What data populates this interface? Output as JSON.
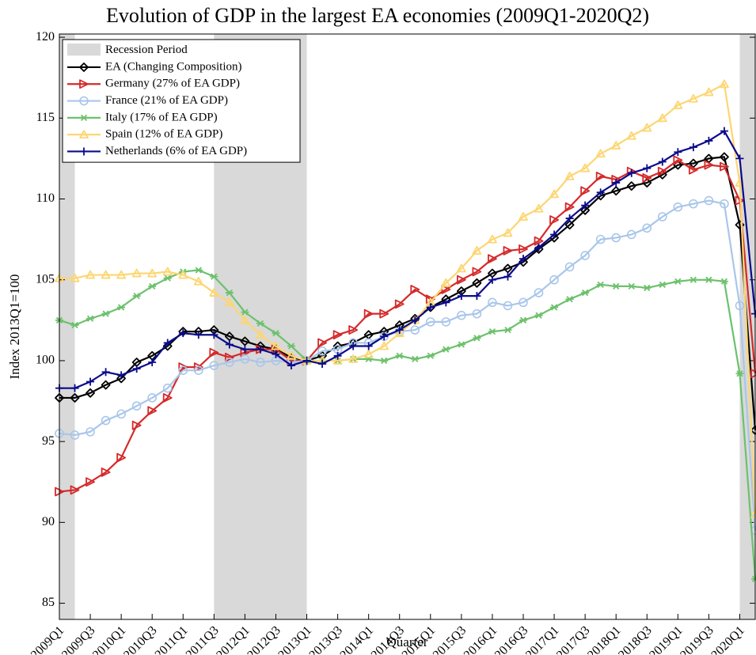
{
  "chart_data": {
    "type": "line",
    "title": "Evolution of GDP in the largest EA economies (2009Q1-2020Q2)",
    "x_label": "Quarter",
    "y_label": "Index 2013Q1=100",
    "categories": [
      "2009Q1",
      null,
      "2009Q3",
      null,
      "2010Q1",
      null,
      "2010Q3",
      null,
      "2011Q1",
      null,
      "2011Q3",
      null,
      "2012Q1",
      null,
      "2012Q3",
      null,
      "2013Q1",
      null,
      "2013Q3",
      null,
      "2014Q1",
      null,
      "2014Q3",
      null,
      "2015Q1",
      null,
      "2015Q3",
      null,
      "2016Q1",
      null,
      "2016Q3",
      null,
      "2017Q1",
      null,
      "2017Q3",
      null,
      "2018Q1",
      null,
      "2018Q3",
      null,
      "2019Q1",
      null,
      "2019Q3",
      null,
      "2020Q1",
      null
    ],
    "ylim": [
      84,
      120.2
    ],
    "yticks": [
      85,
      90,
      95,
      100,
      105,
      110,
      115,
      120
    ],
    "legend": "northwest",
    "recession_label": "Recession Period",
    "recession_color": "#d9d9d9",
    "recessions": [
      [
        0,
        1
      ],
      [
        10,
        16
      ],
      [
        44,
        45
      ]
    ],
    "series": [
      {
        "name": "EA (Changing Composition)",
        "color": "#000000",
        "marker": "diamond",
        "values": [
          97.7,
          97.7,
          98.0,
          98.5,
          98.9,
          99.9,
          100.3,
          100.9,
          101.8,
          101.8,
          101.9,
          101.5,
          101.2,
          100.9,
          100.7,
          100.2,
          100.0,
          100.3,
          100.9,
          101.1,
          101.6,
          101.8,
          102.2,
          102.6,
          103.3,
          103.8,
          104.3,
          104.8,
          105.4,
          105.7,
          106.1,
          106.9,
          107.6,
          108.4,
          109.3,
          110.2,
          110.5,
          110.8,
          111.0,
          111.5,
          112.1,
          112.2,
          112.5,
          112.6,
          108.4,
          95.7
        ]
      },
      {
        "name": "Germany (27% of EA GDP)",
        "color": "#d42a2a",
        "marker": "triangle-right",
        "values": [
          91.9,
          92.0,
          92.5,
          93.1,
          94.0,
          96.0,
          96.9,
          97.7,
          99.6,
          99.6,
          100.5,
          100.2,
          100.5,
          100.7,
          100.7,
          100.0,
          100.0,
          101.1,
          101.6,
          101.9,
          102.9,
          102.9,
          103.5,
          104.4,
          103.8,
          104.4,
          105.0,
          105.5,
          106.3,
          106.8,
          106.9,
          107.4,
          108.7,
          109.5,
          110.5,
          111.4,
          111.2,
          111.7,
          111.3,
          111.7,
          112.4,
          111.8,
          112.1,
          112.0,
          109.9,
          99.2
        ]
      },
      {
        "name": "France (21% of EA GDP)",
        "color": "#a9c6ea",
        "marker": "circle",
        "values": [
          95.5,
          95.4,
          95.6,
          96.3,
          96.7,
          97.2,
          97.7,
          98.3,
          99.4,
          99.4,
          99.7,
          99.9,
          100.1,
          99.9,
          100.0,
          99.9,
          100.0,
          100.6,
          100.7,
          101.1,
          101.1,
          101.5,
          101.8,
          101.9,
          102.4,
          102.4,
          102.8,
          102.9,
          103.6,
          103.4,
          103.6,
          104.2,
          105.0,
          105.8,
          106.5,
          107.5,
          107.6,
          107.8,
          108.2,
          108.9,
          109.5,
          109.7,
          109.9,
          109.7,
          103.4,
          89.5
        ]
      },
      {
        "name": "Italy (17% of EA GDP)",
        "color": "#6cc16c",
        "marker": "asterisk",
        "values": [
          102.5,
          102.2,
          102.6,
          102.9,
          103.3,
          104.0,
          104.6,
          105.1,
          105.5,
          105.6,
          105.2,
          104.2,
          103.0,
          102.3,
          101.7,
          100.9,
          100.0,
          100.0,
          100.0,
          100.1,
          100.1,
          100.0,
          100.3,
          100.1,
          100.3,
          100.7,
          101.0,
          101.4,
          101.8,
          101.9,
          102.5,
          102.8,
          103.3,
          103.8,
          104.2,
          104.7,
          104.6,
          104.6,
          104.5,
          104.7,
          104.9,
          105.0,
          105.0,
          104.9,
          99.2,
          86.5
        ]
      },
      {
        "name": "Spain (12% of EA GDP)",
        "color": "#fdd672",
        "marker": "triangle-up",
        "values": [
          105.1,
          105.1,
          105.3,
          105.3,
          105.3,
          105.4,
          105.4,
          105.5,
          105.3,
          104.9,
          104.2,
          103.6,
          102.5,
          101.6,
          100.9,
          100.3,
          100.0,
          100.0,
          100.0,
          100.1,
          100.4,
          100.9,
          101.7,
          102.5,
          103.6,
          104.8,
          105.7,
          106.8,
          107.5,
          107.9,
          108.9,
          109.4,
          110.3,
          111.4,
          111.9,
          112.8,
          113.3,
          113.9,
          114.4,
          115.0,
          115.8,
          116.2,
          116.6,
          117.1,
          111.0,
          90.5
        ]
      },
      {
        "name": "Netherlands (6% of EA GDP)",
        "color": "#0b0b8c",
        "marker": "plus",
        "values": [
          98.3,
          98.3,
          98.7,
          99.3,
          99.1,
          99.5,
          99.9,
          101.1,
          101.7,
          101.6,
          101.6,
          101.0,
          100.7,
          100.7,
          100.4,
          99.7,
          100.0,
          99.8,
          100.3,
          100.9,
          100.9,
          101.5,
          101.9,
          102.5,
          103.3,
          103.6,
          104.0,
          104.0,
          105.0,
          105.2,
          106.3,
          107.0,
          107.8,
          108.8,
          109.6,
          110.4,
          111.0,
          111.6,
          111.9,
          112.3,
          112.9,
          113.2,
          113.6,
          114.2,
          112.5,
          102.9
        ]
      }
    ]
  }
}
